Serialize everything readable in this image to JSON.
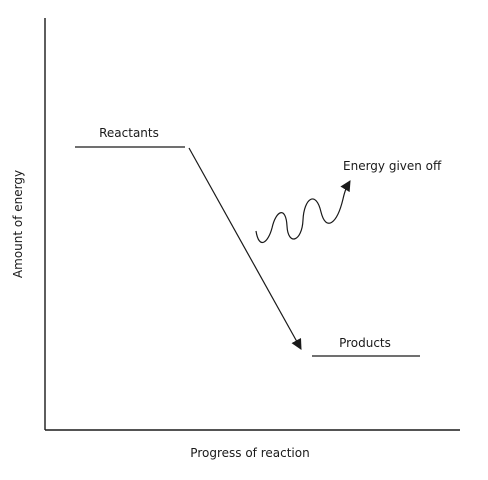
{
  "diagram": {
    "title": "",
    "axes": {
      "x_label": "Progress of reaction",
      "y_label": "Amount of energy"
    },
    "levels": {
      "reactants": "Reactants",
      "products": "Products"
    },
    "energy_release_label": "Energy given off"
  }
}
